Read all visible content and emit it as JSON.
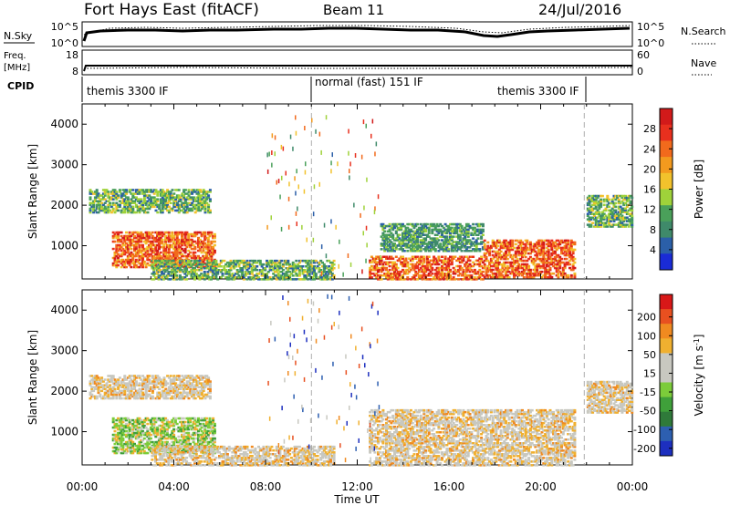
{
  "header": {
    "station": "Fort Hays East (fitACF)",
    "beam": "Beam 11",
    "date": "24/Jul/2016"
  },
  "top_panels": {
    "nsky_label": "N.Sky",
    "nsky_ticks": [
      "10^5",
      "10^0"
    ],
    "nsearch_label": "N.Search",
    "nsearch_ticks": [
      "10^5",
      "10^0"
    ],
    "freq_label": "Freq.",
    "freq_unit": "[MHz]",
    "freq_ticks": [
      "18",
      "8"
    ],
    "nave_label": "Nave",
    "nave_ticks": [
      "60",
      "0"
    ],
    "cpid_label": "CPID",
    "cpid_segments": [
      "themis 3300 IF",
      "normal (fast) 151 IF",
      "themis 3300 IF"
    ]
  },
  "chart_data": [
    {
      "type": "heatmap",
      "title": "",
      "xlabel": "Time UT",
      "ylabel": "Slant Range [km]",
      "x_ticks": [
        "00:00",
        "04:00",
        "08:00",
        "12:00",
        "16:00",
        "20:00",
        "00:00"
      ],
      "y_ticks": [
        1000,
        2000,
        3000,
        4000
      ],
      "xlim_hours": [
        0,
        24
      ],
      "ylim": [
        180,
        4500
      ],
      "colorbar": {
        "label": "Power [dB]",
        "ticks": [
          4,
          8,
          12,
          16,
          20,
          24,
          28
        ],
        "colors": [
          "#1a2bd6",
          "#2b5fa8",
          "#3f8a6a",
          "#4aa05a",
          "#9fd23a",
          "#f2c22c",
          "#f39a1e",
          "#f26a1c",
          "#e8301e",
          "#d21a1a"
        ]
      },
      "echo_regions": [
        {
          "t0": 0.3,
          "t1": 5.6,
          "r0": 1850,
          "r1": 2450,
          "level": "medium"
        },
        {
          "t0": 1.3,
          "t1": 5.8,
          "r0": 500,
          "r1": 1400,
          "level": "high"
        },
        {
          "t0": 3.0,
          "t1": 11.0,
          "r0": 200,
          "r1": 700,
          "level": "medium"
        },
        {
          "t0": 12.5,
          "t1": 17.5,
          "r0": 200,
          "r1": 800,
          "level": "high"
        },
        {
          "t0": 13.0,
          "t1": 17.5,
          "r0": 900,
          "r1": 1600,
          "level": "low"
        },
        {
          "t0": 17.5,
          "t1": 21.5,
          "r0": 250,
          "r1": 1200,
          "level": "high"
        },
        {
          "t0": 22.0,
          "t1": 24.0,
          "r0": 1500,
          "r1": 2300,
          "level": "medium"
        }
      ]
    },
    {
      "type": "heatmap",
      "title": "",
      "xlabel": "Time UT",
      "ylabel": "Slant Range [km]",
      "x_ticks": [
        "00:00",
        "04:00",
        "08:00",
        "12:00",
        "16:00",
        "20:00",
        "00:00"
      ],
      "y_ticks": [
        1000,
        2000,
        3000,
        4000
      ],
      "xlim_hours": [
        0,
        24
      ],
      "ylim": [
        180,
        4500
      ],
      "colorbar": {
        "label": "Velocity [m s^-1]",
        "ticks": [
          200,
          100,
          50,
          15,
          -15,
          -50,
          -100,
          -200
        ],
        "colors": [
          "#1d2fbf",
          "#2d5fb0",
          "#2f7a3a",
          "#3fa03a",
          "#7ccc3a",
          "#c8c8c0",
          "#c8c8c0",
          "#f0b030",
          "#f08a20",
          "#e85020",
          "#d81818"
        ]
      },
      "echo_regions": [
        {
          "t0": 0.3,
          "t1": 5.6,
          "r0": 1850,
          "r1": 2450,
          "level": "gray"
        },
        {
          "t0": 1.3,
          "t1": 5.8,
          "r0": 500,
          "r1": 1400,
          "level": "green"
        },
        {
          "t0": 3.0,
          "t1": 11.0,
          "r0": 200,
          "r1": 700,
          "level": "gray"
        },
        {
          "t0": 12.5,
          "t1": 21.5,
          "r0": 200,
          "r1": 1600,
          "level": "gray"
        },
        {
          "t0": 22.0,
          "t1": 24.0,
          "r0": 1500,
          "r1": 2300,
          "level": "gray"
        }
      ]
    }
  ]
}
